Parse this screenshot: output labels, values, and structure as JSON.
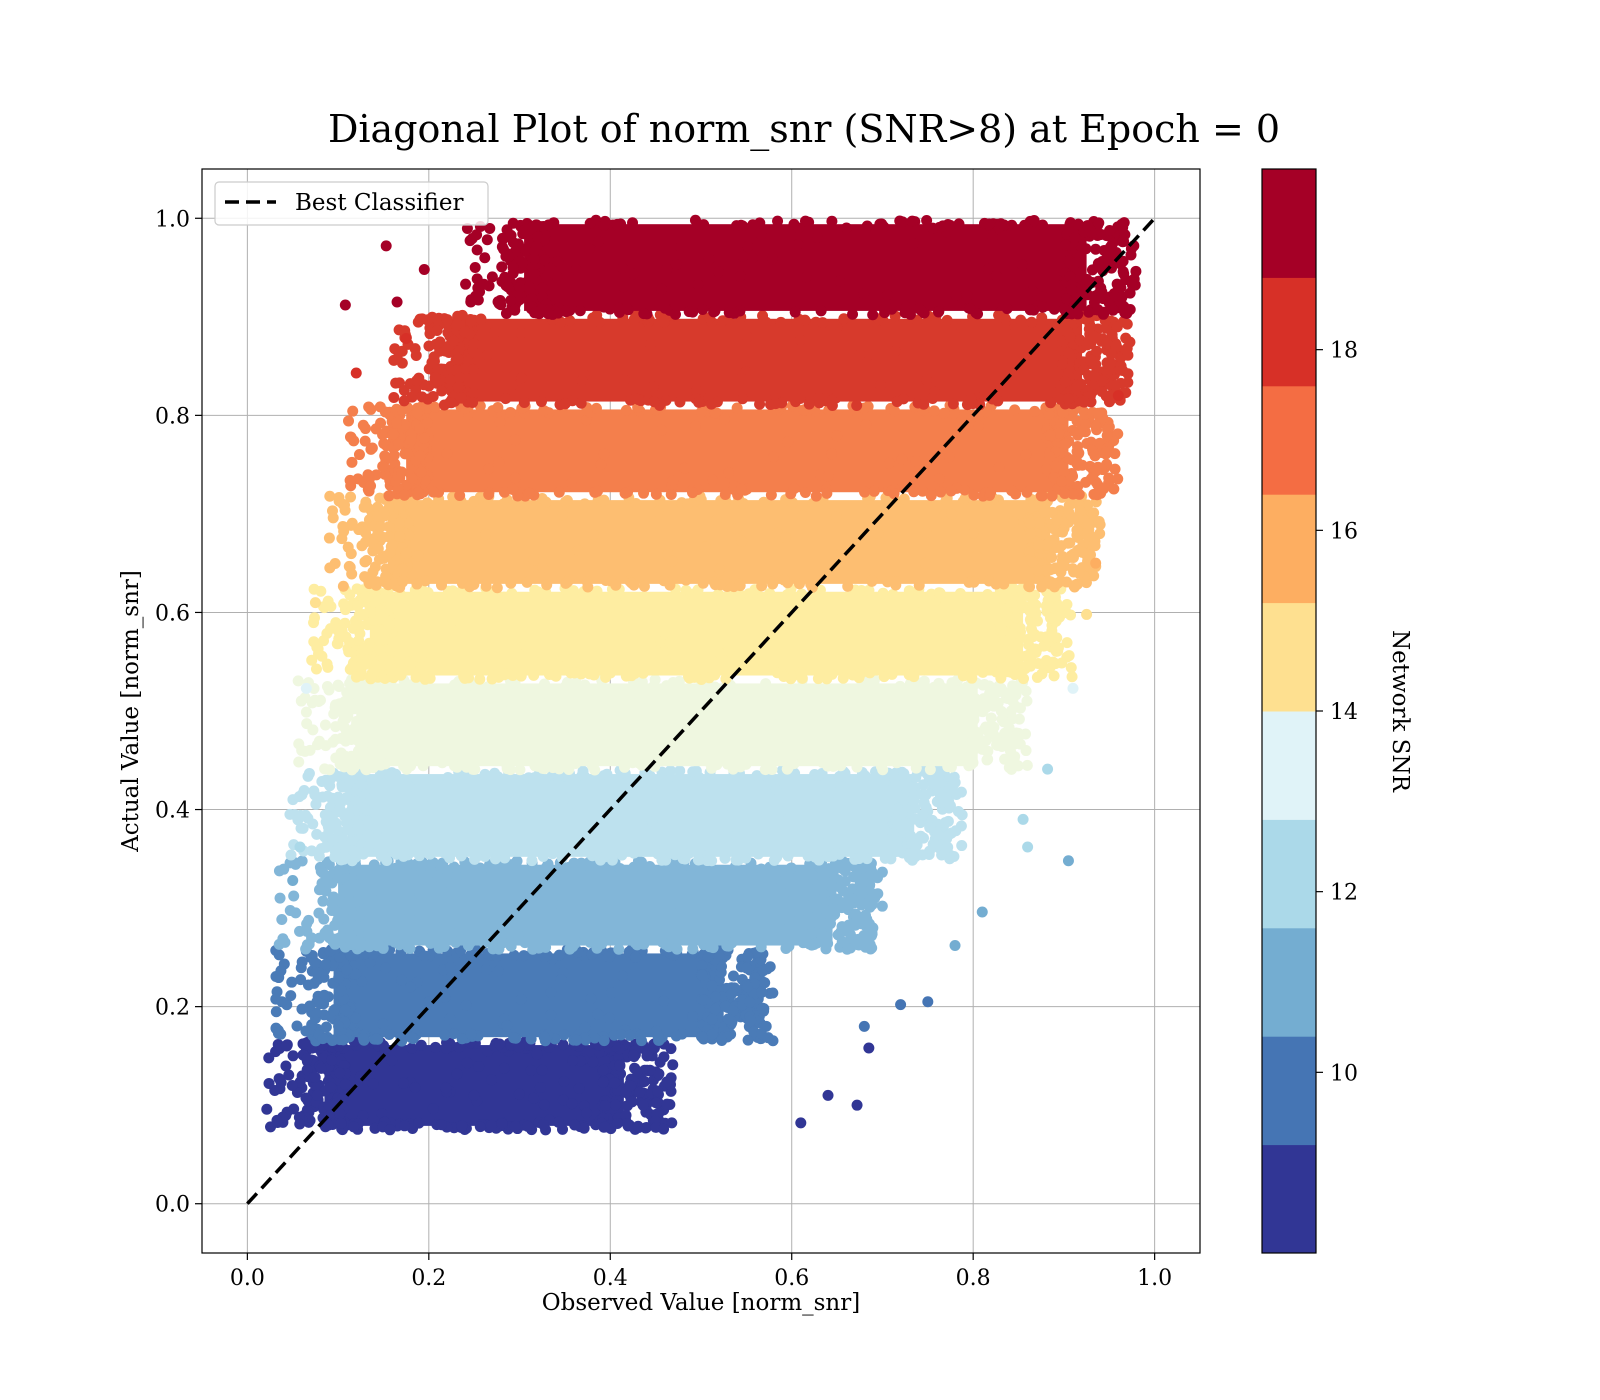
{
  "chart_data": {
    "type": "scatter",
    "title": "Diagonal Plot of norm_snr (SNR>8) at Epoch = 0",
    "xlabel": "Observed Value [norm_snr]",
    "ylabel": "Actual Value [norm_snr]",
    "xlim": [
      -0.05,
      1.05
    ],
    "ylim": [
      -0.05,
      1.05
    ],
    "xticks": [
      "0.0",
      "0.2",
      "0.4",
      "0.6",
      "0.8",
      "1.0"
    ],
    "yticks": [
      "0.0",
      "0.2",
      "0.4",
      "0.6",
      "0.8",
      "1.0"
    ],
    "grid": true,
    "legend": {
      "placement": "top-left",
      "entries": [
        {
          "label": "Best Classifier",
          "style": "dashed",
          "color": "#000000"
        }
      ]
    },
    "reference_line": {
      "label": "Best Classifier",
      "x": [
        0.0,
        1.0
      ],
      "y": [
        0.0,
        1.0
      ]
    },
    "colorbar": {
      "label": "Network SNR",
      "range": [
        8,
        20
      ],
      "ticks": [
        "10",
        "12",
        "14",
        "16",
        "18"
      ],
      "colors": [
        "#313695",
        "#4575b4",
        "#74add1",
        "#abd9e9",
        "#e0f3f8",
        "#fee090",
        "#fdae61",
        "#f46d43",
        "#d73027",
        "#a50026"
      ]
    },
    "bands": [
      {
        "y_range": [
          0.075,
          0.165
        ],
        "x_range": [
          0.06,
          0.45
        ],
        "color": "#313695",
        "snr_range": "8-9.2"
      },
      {
        "y_range": [
          0.165,
          0.258
        ],
        "x_range": [
          0.07,
          0.56
        ],
        "color": "#4a7bb7",
        "snr_range": "9.2-10.4"
      },
      {
        "y_range": [
          0.258,
          0.348
        ],
        "x_range": [
          0.075,
          0.68
        ],
        "color": "#82b6d8",
        "snr_range": "10.4-11.6"
      },
      {
        "y_range": [
          0.348,
          0.44
        ],
        "x_range": [
          0.085,
          0.77
        ],
        "color": "#bde1ee",
        "snr_range": "11.6-12.8"
      },
      {
        "y_range": [
          0.44,
          0.532
        ],
        "x_range": [
          0.095,
          0.84
        ],
        "color": "#eff7e0",
        "snr_range": "12.8-14"
      },
      {
        "y_range": [
          0.532,
          0.625
        ],
        "x_range": [
          0.11,
          0.89
        ],
        "color": "#feeda1",
        "snr_range": "14-15.2"
      },
      {
        "y_range": [
          0.625,
          0.718
        ],
        "x_range": [
          0.13,
          0.92
        ],
        "color": "#fdbe71",
        "snr_range": "15.2-16.4"
      },
      {
        "y_range": [
          0.718,
          0.81
        ],
        "x_range": [
          0.15,
          0.94
        ],
        "color": "#f47f4c",
        "snr_range": "16.4-17.6"
      },
      {
        "y_range": [
          0.81,
          0.902
        ],
        "x_range": [
          0.2,
          0.955
        ],
        "color": "#d73a2c",
        "snr_range": "17.6-18.8"
      },
      {
        "y_range": [
          0.902,
          0.998
        ],
        "x_range": [
          0.28,
          0.96
        ],
        "color": "#a50026",
        "snr_range": "18.8-20"
      }
    ],
    "outliers": [
      {
        "x": 0.035,
        "y": 0.127,
        "color": "#313695"
      },
      {
        "x": 0.05,
        "y": 0.328,
        "color": "#74add1"
      },
      {
        "x": 0.058,
        "y": 0.362,
        "color": "#abd9e9"
      },
      {
        "x": 0.065,
        "y": 0.523,
        "color": "#e0f3f8"
      },
      {
        "x": 0.075,
        "y": 0.61,
        "color": "#fee090"
      },
      {
        "x": 0.108,
        "y": 0.912,
        "color": "#a50026"
      },
      {
        "x": 0.12,
        "y": 0.843,
        "color": "#d73027"
      },
      {
        "x": 0.153,
        "y": 0.972,
        "color": "#a50026"
      },
      {
        "x": 0.165,
        "y": 0.915,
        "color": "#a50026"
      },
      {
        "x": 0.175,
        "y": 0.878,
        "color": "#d73027"
      },
      {
        "x": 0.195,
        "y": 0.948,
        "color": "#a50026"
      },
      {
        "x": 0.61,
        "y": 0.082,
        "color": "#313695"
      },
      {
        "x": 0.64,
        "y": 0.11,
        "color": "#313695"
      },
      {
        "x": 0.672,
        "y": 0.1,
        "color": "#313695"
      },
      {
        "x": 0.685,
        "y": 0.158,
        "color": "#313695"
      },
      {
        "x": 0.68,
        "y": 0.18,
        "color": "#4575b4"
      },
      {
        "x": 0.72,
        "y": 0.202,
        "color": "#4575b4"
      },
      {
        "x": 0.75,
        "y": 0.205,
        "color": "#4575b4"
      },
      {
        "x": 0.78,
        "y": 0.262,
        "color": "#74add1"
      },
      {
        "x": 0.81,
        "y": 0.296,
        "color": "#74add1"
      },
      {
        "x": 0.905,
        "y": 0.348,
        "color": "#74add1"
      },
      {
        "x": 0.86,
        "y": 0.362,
        "color": "#abd9e9"
      },
      {
        "x": 0.855,
        "y": 0.39,
        "color": "#abd9e9"
      },
      {
        "x": 0.882,
        "y": 0.441,
        "color": "#abd9e9"
      },
      {
        "x": 0.91,
        "y": 0.523,
        "color": "#e0f3f8"
      },
      {
        "x": 0.925,
        "y": 0.598,
        "color": "#fee090"
      },
      {
        "x": 0.935,
        "y": 0.65,
        "color": "#fdae61"
      },
      {
        "x": 0.96,
        "y": 0.82,
        "color": "#d73027"
      }
    ]
  }
}
